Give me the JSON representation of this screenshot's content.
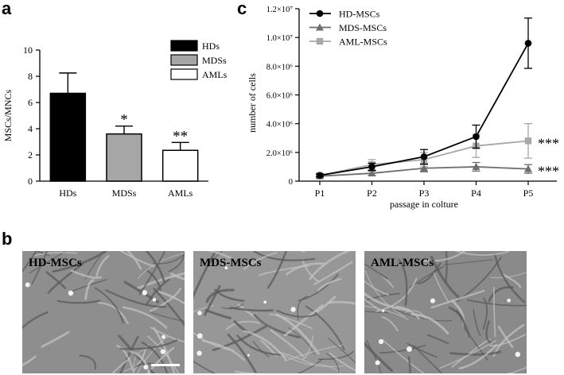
{
  "panels": {
    "a": {
      "letter": "a",
      "chart_data": {
        "type": "bar",
        "categories": [
          "HDs",
          "MDSs",
          "AMLs"
        ],
        "values": [
          6.7,
          3.6,
          2.35
        ],
        "error_upper": [
          1.55,
          0.6,
          0.6
        ],
        "fills": [
          "#000000",
          "#a6a6a6",
          "#ffffff"
        ],
        "significance": [
          "",
          "*",
          "**"
        ],
        "ylabel": "MSCs/MNCs",
        "ylim": [
          0,
          10
        ],
        "yticks": [
          "0",
          "2",
          "4",
          "6",
          "8",
          "10"
        ],
        "legend": {
          "placement": "top-right",
          "entries": [
            {
              "label": "HDs",
              "color": "#000000"
            },
            {
              "label": "MDSs",
              "color": "#a6a6a6"
            },
            {
              "label": "AMLs",
              "color": "#ffffff"
            }
          ]
        }
      }
    },
    "c": {
      "letter": "c",
      "chart_data": {
        "type": "line",
        "x": [
          "P1",
          "P2",
          "P3",
          "P4",
          "P5"
        ],
        "xlabel": "passage in colture",
        "ylabel": "number of cells",
        "ylim": [
          0,
          12000000
        ],
        "yticks": [
          "0",
          "2.0×10⁶",
          "4.0×10⁶",
          "6.0×10⁶",
          "8.0×10⁶",
          "1.0×10⁷",
          "1.2×10⁷"
        ],
        "legend_placement": "top-left",
        "series": [
          {
            "name": "HD-MSCs",
            "color": "#000000",
            "marker": "circle",
            "values": [
              400000,
              1000000,
              1700000,
              3100000,
              9600000
            ],
            "errors": [
              100000,
              250000,
              500000,
              800000,
              1750000
            ],
            "significance": ""
          },
          {
            "name": "MDS-MSCs",
            "color": "#6e6e6e",
            "marker": "triangle",
            "values": [
              350000,
              550000,
              900000,
              1000000,
              850000
            ],
            "errors": [
              100000,
              150000,
              250000,
              300000,
              300000
            ],
            "significance": "***"
          },
          {
            "name": "AML-MSCs",
            "color": "#a8a8a8",
            "marker": "square",
            "values": [
              400000,
              1150000,
              1500000,
              2450000,
              2800000
            ],
            "errors": [
              100000,
              350000,
              500000,
              800000,
              1200000
            ],
            "significance": "***"
          }
        ]
      }
    },
    "b": {
      "letter": "b",
      "images": [
        {
          "label": "HD-MSCs",
          "scale_bar": true
        },
        {
          "label": "MDS-MSCs",
          "scale_bar": false
        },
        {
          "label": "AML-MSCs",
          "scale_bar": false
        }
      ]
    }
  }
}
